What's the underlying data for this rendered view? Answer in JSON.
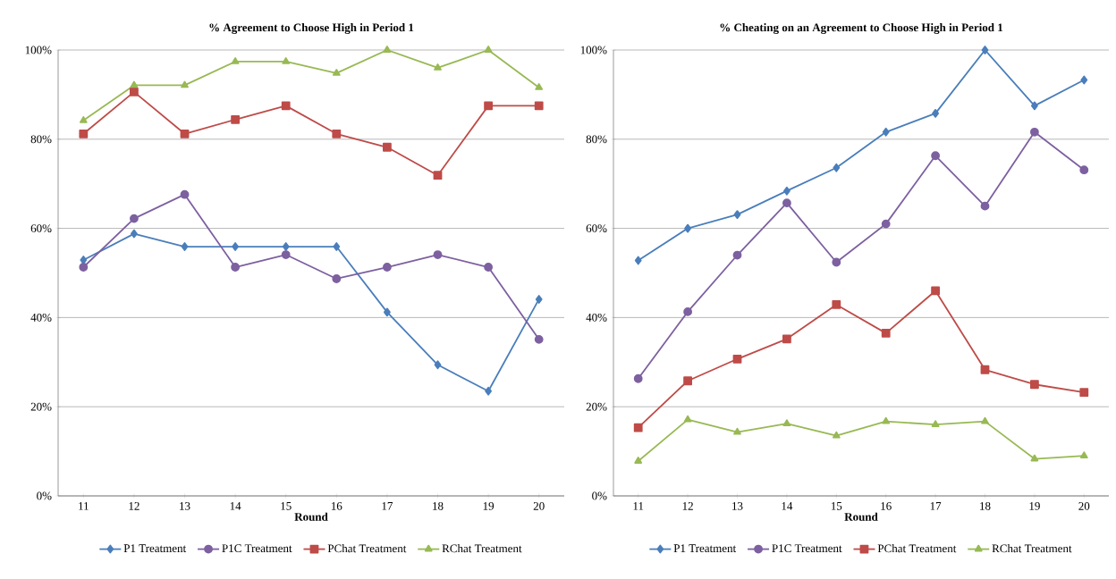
{
  "chart_data": [
    {
      "type": "line",
      "title": "% Agreement to Choose High in Period 1",
      "xlabel": "Round",
      "categories": [
        "11",
        "12",
        "13",
        "14",
        "15",
        "16",
        "17",
        "18",
        "19",
        "20"
      ],
      "ylim": [
        0,
        100
      ],
      "yticks": [
        {
          "value": 0,
          "label": "0%"
        },
        {
          "value": 20,
          "label": "20%"
        },
        {
          "value": 40,
          "label": "40%"
        },
        {
          "value": 60,
          "label": "60%"
        },
        {
          "value": 80,
          "label": "80%"
        },
        {
          "value": 100,
          "label": "100%"
        }
      ],
      "grid": "y",
      "legend": "bottom",
      "line_style": "solid",
      "series": [
        {
          "name": "P1 Treatment",
          "color": "#4a7ebb",
          "marker": "diamond",
          "values": [
            52.9,
            58.8,
            55.9,
            55.9,
            55.9,
            55.9,
            41.2,
            29.4,
            23.5,
            44.1
          ]
        },
        {
          "name": "P1C Treatment",
          "color": "#7d60a0",
          "marker": "circle",
          "values": [
            51.3,
            62.2,
            67.6,
            51.3,
            54.1,
            48.7,
            51.3,
            54.1,
            51.3,
            35.1
          ]
        },
        {
          "name": "PChat Treatment",
          "color": "#be4b48",
          "marker": "square",
          "values": [
            81.2,
            90.6,
            81.2,
            84.4,
            87.5,
            81.2,
            78.2,
            71.9,
            87.5,
            87.5
          ]
        },
        {
          "name": "RChat Treatment",
          "color": "#98b954",
          "marker": "triangle",
          "values": [
            84.2,
            92.1,
            92.1,
            97.4,
            97.4,
            94.8,
            100,
            96,
            100,
            91.6
          ]
        }
      ]
    },
    {
      "type": "line",
      "title": "% Cheating on an Agreement to Choose High in Period 1",
      "xlabel": "Round",
      "categories": [
        "11",
        "12",
        "13",
        "14",
        "15",
        "16",
        "17",
        "18",
        "19",
        "20"
      ],
      "ylim": [
        0,
        100
      ],
      "yticks": [
        {
          "value": 0,
          "label": "0%"
        },
        {
          "value": 20,
          "label": "20%"
        },
        {
          "value": 40,
          "label": "40%"
        },
        {
          "value": 60,
          "label": "60%"
        },
        {
          "value": 80,
          "label": "80%"
        },
        {
          "value": 100,
          "label": "100%"
        }
      ],
      "grid": "y",
      "legend": "bottom",
      "line_style": "solid",
      "series": [
        {
          "name": "P1 Treatment",
          "color": "#4a7ebb",
          "marker": "diamond",
          "values": [
            52.8,
            60,
            63.1,
            68.4,
            73.6,
            81.6,
            85.8,
            100,
            87.5,
            93.3
          ]
        },
        {
          "name": "P1C Treatment",
          "color": "#7d60a0",
          "marker": "circle",
          "values": [
            26.3,
            41.3,
            54.0,
            65.7,
            52.4,
            61.0,
            76.3,
            65.0,
            81.6,
            73.1
          ]
        },
        {
          "name": "PChat Treatment",
          "color": "#be4b48",
          "marker": "square",
          "values": [
            15.3,
            25.8,
            30.7,
            35.2,
            42.9,
            36.5,
            46.0,
            28.3,
            25.0,
            23.2
          ]
        },
        {
          "name": "RChat Treatment",
          "color": "#98b954",
          "marker": "triangle",
          "values": [
            7.8,
            17.1,
            14.3,
            16.2,
            13.5,
            16.7,
            16.0,
            16.7,
            8.3,
            9.0
          ]
        }
      ]
    }
  ]
}
